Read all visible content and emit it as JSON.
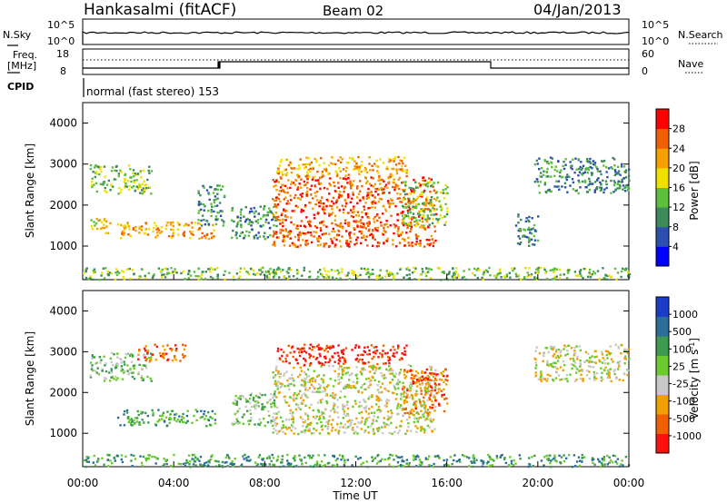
{
  "header": {
    "station": "Hankasalmi (fitACF)",
    "beam": "Beam 02",
    "date": "04/Jan/2013"
  },
  "panels": {
    "nsky": {
      "label": "N.Sky",
      "tick_top": "10^5",
      "tick_bottom": "10^0",
      "right_label": "N.Search",
      "right_tick_top": "10^5",
      "right_tick_bottom": "10^0"
    },
    "freq": {
      "label_line1": "Freq.",
      "label_line2": "[MHz]",
      "tick_top": "18",
      "tick_bottom": "8",
      "right_label": "Nave",
      "right_tick_top": "60",
      "right_tick_bottom": "0"
    },
    "cpid": {
      "label": "CPID",
      "text": "normal (fast stereo) 153"
    }
  },
  "chart_data": [
    {
      "type": "heatmap",
      "name": "Power",
      "ylabel": "Slant Range [km]",
      "xlabel": "Time UT",
      "xticks": [
        "00:00",
        "04:00",
        "08:00",
        "12:00",
        "16:00",
        "20:00",
        "00:00"
      ],
      "yticks": [
        "1000",
        "2000",
        "3000",
        "4000"
      ],
      "ylim": [
        180,
        4500
      ],
      "xlim_hours": [
        0,
        24
      ],
      "colorbar": {
        "label": "Power [dB]",
        "ticks": [
          "4",
          "8",
          "12",
          "16",
          "20",
          "24",
          "28"
        ],
        "colors": [
          "#0000ff",
          "#2c4fb0",
          "#3d8a5a",
          "#5bbf3c",
          "#f0e000",
          "#f5a000",
          "#f06000",
          "#ff0000"
        ]
      },
      "regions": [
        {
          "t": [
            0.3,
            3.0
          ],
          "r": [
            2300,
            3000
          ],
          "level": 10
        },
        {
          "t": [
            0.3,
            1.2
          ],
          "r": [
            1300,
            1700
          ],
          "level": 14
        },
        {
          "t": [
            1.5,
            5.8
          ],
          "r": [
            1200,
            1600
          ],
          "level": 20
        },
        {
          "t": [
            5.0,
            6.2
          ],
          "r": [
            1500,
            2500
          ],
          "level": 8
        },
        {
          "t": [
            6.5,
            8.5
          ],
          "r": [
            1200,
            2000
          ],
          "level": 9
        },
        {
          "t": [
            8.3,
            15.5
          ],
          "r": [
            1000,
            2700
          ],
          "level": 24
        },
        {
          "t": [
            8.5,
            14.2
          ],
          "r": [
            2700,
            3200
          ],
          "level": 20
        },
        {
          "t": [
            14.0,
            16.0
          ],
          "r": [
            1500,
            2600
          ],
          "level": 10
        },
        {
          "t": [
            19.0,
            20.0
          ],
          "r": [
            1000,
            1800
          ],
          "level": 6
        },
        {
          "t": [
            19.8,
            24.0
          ],
          "r": [
            2300,
            3200
          ],
          "level": 9
        },
        {
          "t": [
            0.0,
            24.0
          ],
          "r": [
            200,
            500
          ],
          "level": 12
        }
      ]
    },
    {
      "type": "heatmap",
      "name": "Velocity",
      "ylabel": "Slant Range [km]",
      "xlabel": "Time UT",
      "xticks": [
        "00:00",
        "04:00",
        "08:00",
        "12:00",
        "16:00",
        "20:00",
        "00:00"
      ],
      "yticks": [
        "1000",
        "2000",
        "3000",
        "4000"
      ],
      "ylim": [
        180,
        4500
      ],
      "xlim_hours": [
        0,
        24
      ],
      "colorbar": {
        "label": "Velocity [m s^-1]",
        "ticks": [
          "1000",
          "500",
          "100",
          "25",
          "-25",
          "-100",
          "-500",
          "-1000"
        ],
        "colors": [
          "#1a3cc8",
          "#2c6e9a",
          "#3c9b50",
          "#6ccb2c",
          "#c8c8c8",
          "#f0a000",
          "#f06000",
          "#ff1010"
        ]
      },
      "regions": [
        {
          "t": [
            0.3,
            3.0
          ],
          "r": [
            2300,
            3000
          ],
          "level": 25
        },
        {
          "t": [
            1.5,
            5.8
          ],
          "r": [
            1200,
            1600
          ],
          "level": 100
        },
        {
          "t": [
            2.4,
            4.5
          ],
          "r": [
            2800,
            3200
          ],
          "level": -100
        },
        {
          "t": [
            6.5,
            8.5
          ],
          "r": [
            1200,
            2000
          ],
          "level": 25
        },
        {
          "t": [
            8.3,
            15.5
          ],
          "r": [
            1000,
            2700
          ],
          "level": 0
        },
        {
          "t": [
            8.5,
            14.2
          ],
          "r": [
            2700,
            3200
          ],
          "level": -500
        },
        {
          "t": [
            14.0,
            16.0
          ],
          "r": [
            1500,
            2600
          ],
          "level": -100
        },
        {
          "t": [
            19.8,
            24.0
          ],
          "r": [
            2300,
            3200
          ],
          "level": 0
        },
        {
          "t": [
            0.0,
            24.0
          ],
          "r": [
            200,
            500
          ],
          "level": 100
        }
      ]
    }
  ]
}
